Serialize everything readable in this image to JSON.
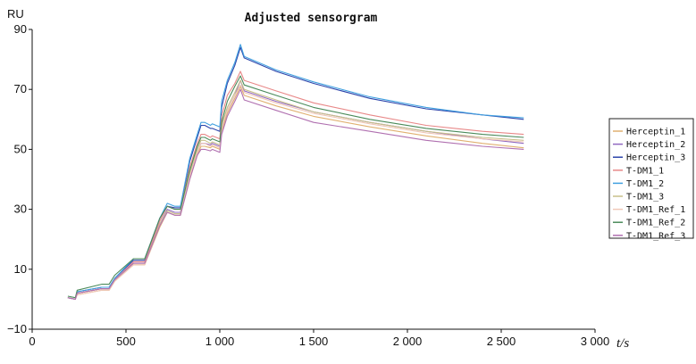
{
  "chart_data": {
    "type": "line",
    "title": "Adjusted sensorgram",
    "ylabel": "RU",
    "xlabel": "t/s",
    "xlim": [
      0,
      3000
    ],
    "ylim": [
      -10,
      90
    ],
    "x_ticks": [
      0,
      500,
      1000,
      1500,
      2000,
      2500,
      3000
    ],
    "x_tick_labels": [
      "0",
      "500",
      "1 000",
      "1 500",
      "2 000",
      "2 500",
      "3 000"
    ],
    "y_ticks": [
      -10,
      10,
      30,
      50,
      70,
      90
    ],
    "y_tick_labels": [
      "−10",
      "10",
      "30",
      "50",
      "70",
      "90"
    ],
    "grid": false,
    "legend_position": "right",
    "series": [
      {
        "name": "Herceptin_1",
        "color": "#e0b070",
        "x": [
          190,
          230,
          240,
          370,
          410,
          440,
          540,
          570,
          600,
          680,
          720,
          760,
          790,
          840,
          880,
          900,
          920,
          950,
          960,
          1000,
          1010,
          1040,
          1080,
          1110,
          1130,
          1300,
          1500,
          1800,
          2100,
          2400,
          2620
        ],
        "y": [
          0.5,
          0,
          1.5,
          3,
          3,
          6,
          11.5,
          11.5,
          11.5,
          24,
          29,
          28,
          28,
          40,
          48,
          51,
          51,
          50.5,
          51,
          50,
          56,
          62,
          67,
          71,
          68,
          64.5,
          61,
          57.5,
          54.5,
          52,
          50.5
        ]
      },
      {
        "name": "Herceptin_2",
        "color": "#9068c0",
        "x": [
          190,
          230,
          240,
          370,
          410,
          440,
          540,
          570,
          600,
          680,
          720,
          760,
          790,
          840,
          880,
          900,
          920,
          950,
          960,
          1000,
          1010,
          1040,
          1080,
          1110,
          1130,
          1300,
          1500,
          1800,
          2100,
          2400,
          2620
        ],
        "y": [
          0.5,
          0,
          2,
          3.5,
          3.5,
          6.5,
          12,
          12,
          12,
          25,
          30,
          29,
          29,
          41,
          49,
          52,
          52,
          51.5,
          52,
          51,
          57,
          63,
          68,
          73,
          69.5,
          66,
          62.5,
          59,
          56,
          53.5,
          52
        ]
      },
      {
        "name": "Herceptin_3",
        "color": "#2c44aa",
        "x": [
          190,
          230,
          240,
          370,
          410,
          440,
          540,
          570,
          600,
          680,
          720,
          760,
          790,
          840,
          880,
          900,
          920,
          950,
          960,
          1000,
          1010,
          1040,
          1080,
          1110,
          1130,
          1300,
          1500,
          1800,
          2100,
          2400,
          2620
        ],
        "y": [
          0.5,
          0,
          2.5,
          4,
          4,
          7,
          13,
          13,
          13,
          27,
          31,
          30.5,
          30.5,
          46,
          54,
          58,
          58,
          57,
          57,
          56,
          64,
          72,
          78,
          84,
          80.5,
          76,
          72,
          67,
          63.5,
          61.5,
          60
        ]
      },
      {
        "name": "T-DM1_1",
        "color": "#e88888",
        "x": [
          190,
          230,
          240,
          370,
          410,
          440,
          540,
          570,
          600,
          680,
          720,
          760,
          790,
          840,
          880,
          900,
          920,
          950,
          960,
          1000,
          1010,
          1040,
          1080,
          1110,
          1130,
          1300,
          1500,
          1800,
          2100,
          2400,
          2620
        ],
        "y": [
          0.5,
          0,
          2,
          3.5,
          3.5,
          6.5,
          12.5,
          12.5,
          12.5,
          26,
          31,
          30,
          30,
          44,
          52,
          55,
          55,
          54,
          54.5,
          53.5,
          61,
          68,
          72,
          76,
          73,
          69.5,
          65.5,
          61.5,
          58,
          56,
          55
        ]
      },
      {
        "name": "T-DM1_2",
        "color": "#40a0e0",
        "x": [
          190,
          230,
          240,
          370,
          410,
          440,
          540,
          570,
          600,
          680,
          720,
          760,
          790,
          840,
          880,
          900,
          920,
          950,
          960,
          1000,
          1010,
          1040,
          1080,
          1110,
          1130,
          1300,
          1500,
          1800,
          2100,
          2400,
          2620
        ],
        "y": [
          0.5,
          0,
          2.5,
          4,
          4,
          7,
          13.5,
          13.5,
          13.5,
          27,
          32,
          31,
          31,
          47,
          55,
          59,
          59,
          58,
          58.5,
          57.5,
          66,
          73,
          79,
          85,
          81,
          76.5,
          72.5,
          67.5,
          64,
          61.5,
          60.5
        ]
      },
      {
        "name": "T-DM1_3",
        "color": "#c8c08a",
        "x": [
          190,
          230,
          240,
          370,
          410,
          440,
          540,
          570,
          600,
          680,
          720,
          760,
          790,
          840,
          880,
          900,
          920,
          950,
          960,
          1000,
          1010,
          1040,
          1080,
          1110,
          1130,
          1300,
          1500,
          1800,
          2100,
          2400,
          2620
        ],
        "y": [
          0.5,
          0,
          2,
          3.5,
          3.5,
          6.5,
          12,
          12,
          12,
          25,
          29.5,
          28.5,
          28.5,
          42,
          50,
          53,
          53,
          52,
          52.5,
          51.5,
          58,
          64,
          69,
          73,
          70,
          66.5,
          62.5,
          59,
          56,
          54,
          53
        ]
      },
      {
        "name": "T-DM1_Ref_1",
        "color": "#f0c8b8",
        "x": [
          190,
          230,
          240,
          370,
          410,
          440,
          540,
          570,
          600,
          680,
          720,
          760,
          790,
          840,
          880,
          900,
          920,
          950,
          960,
          1000,
          1010,
          1040,
          1080,
          1110,
          1130,
          1300,
          1500,
          1800,
          2100,
          2400,
          2620
        ],
        "y": [
          0.5,
          0,
          1.5,
          3,
          3,
          6,
          11.5,
          11.5,
          11.5,
          24.5,
          29,
          28,
          28,
          41,
          49,
          52,
          52,
          51,
          51.5,
          50.5,
          57,
          63,
          68,
          71.5,
          69,
          65.5,
          62,
          58.5,
          55.5,
          53.5,
          52.5
        ]
      },
      {
        "name": "T-DM1_Ref_2",
        "color": "#4a8a5a",
        "x": [
          190,
          230,
          240,
          370,
          410,
          440,
          540,
          570,
          600,
          680,
          720,
          760,
          790,
          840,
          880,
          900,
          920,
          950,
          960,
          1000,
          1010,
          1040,
          1080,
          1110,
          1130,
          1300,
          1500,
          1800,
          2100,
          2400,
          2620
        ],
        "y": [
          1,
          0.5,
          3,
          5,
          5,
          8,
          13.5,
          13.5,
          13.5,
          27,
          31,
          30,
          30,
          43,
          51,
          54,
          54,
          53,
          53.5,
          52.5,
          59,
          66,
          71,
          74.5,
          71.5,
          68,
          64,
          60,
          57,
          55,
          54
        ]
      },
      {
        "name": "T-DM1_Ref_3",
        "color": "#b070b0",
        "x": [
          190,
          230,
          240,
          370,
          410,
          440,
          540,
          570,
          600,
          680,
          720,
          760,
          790,
          840,
          880,
          900,
          920,
          950,
          960,
          1000,
          1010,
          1040,
          1080,
          1110,
          1130,
          1300,
          1500,
          1800,
          2100,
          2400,
          2620
        ],
        "y": [
          0.5,
          0,
          2,
          3.5,
          3.5,
          6.5,
          12,
          12,
          12,
          24.5,
          29,
          28,
          28,
          40,
          48,
          50,
          50,
          49.5,
          50,
          49,
          55,
          61,
          66,
          70,
          66.5,
          63,
          59,
          56,
          53,
          51,
          50
        ]
      }
    ]
  }
}
